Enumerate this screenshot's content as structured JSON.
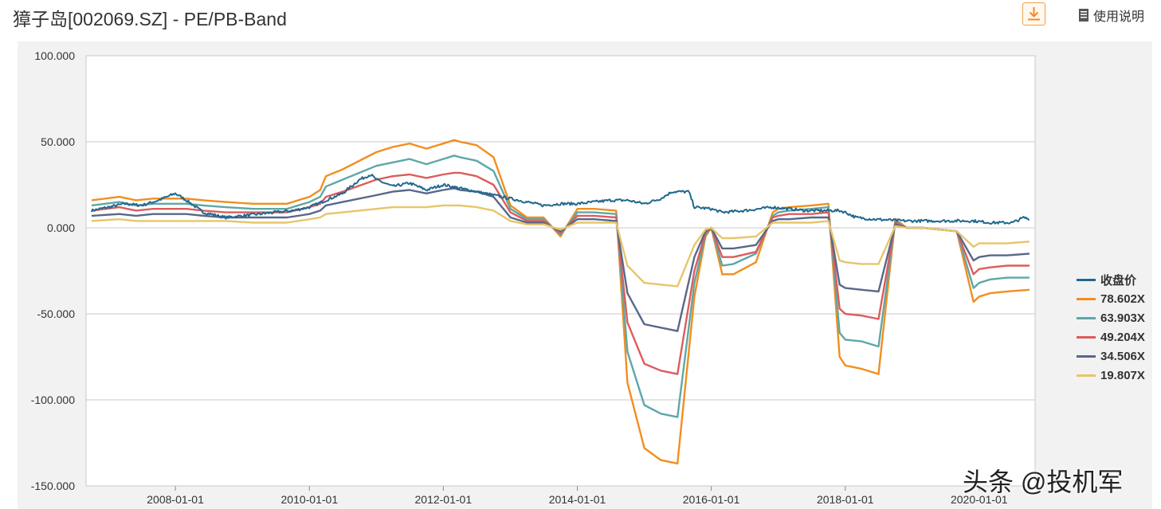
{
  "header": {
    "title": "獐子岛[002069.SZ] - PE/PB-Band",
    "help_label": "使用说明",
    "download_icon": "download-icon",
    "help_icon": "document-icon"
  },
  "watermark": "头条 @投机军",
  "chart_data": {
    "type": "line",
    "ylim": [
      -150,
      100
    ],
    "yticks": [
      "100.000",
      "50.000",
      "0.000",
      "-50.000",
      "-100.000",
      "-150.000"
    ],
    "xlim": [
      "2006-09-01",
      "2020-11-01"
    ],
    "xticks": [
      {
        "date": "2008-01-01",
        "label": "2008-01-01"
      },
      {
        "date": "2010-01-01",
        "label": "2010-01-01"
      },
      {
        "date": "2012-01-01",
        "label": "2012-01-01"
      },
      {
        "date": "2014-01-01",
        "label": "2014-01-01"
      },
      {
        "date": "2016-01-01",
        "label": "2016-01-01"
      },
      {
        "date": "2018-01-01",
        "label": "2018-01-01"
      },
      {
        "date": "2020-01-01",
        "label": "2020-01-01"
      }
    ],
    "grid": true,
    "legend_position": "right",
    "band_dates": [
      "2006-10-01",
      "2007-03-01",
      "2007-06-01",
      "2007-09-01",
      "2008-03-01",
      "2008-06-01",
      "2008-10-01",
      "2009-03-01",
      "2009-06-01",
      "2009-09-01",
      "2010-01-01",
      "2010-03-01",
      "2010-04-01",
      "2010-07-01",
      "2011-01-01",
      "2011-04-01",
      "2011-07-01",
      "2011-10-01",
      "2012-01-01",
      "2012-03-01",
      "2012-04-01",
      "2012-07-01",
      "2012-10-01",
      "2013-01-01",
      "2013-04-01",
      "2013-07-01",
      "2013-10-01",
      "2014-01-01",
      "2014-03-01",
      "2014-04-01",
      "2014-08-01",
      "2014-10-01",
      "2015-01-01",
      "2015-04-01",
      "2015-07-01",
      "2015-10-01",
      "2015-12-01",
      "2016-01-01",
      "2016-03-01",
      "2016-05-01",
      "2016-09-01",
      "2016-12-01",
      "2017-01-01",
      "2017-03-01",
      "2017-07-01",
      "2017-10-01",
      "2017-12-01",
      "2018-01-01",
      "2018-04-01",
      "2018-07-01",
      "2018-10-01",
      "2018-12-01",
      "2019-03-01",
      "2019-06-01",
      "2019-09-01",
      "2019-12-01",
      "2020-01-01",
      "2020-03-01",
      "2020-06-01",
      "2020-10-01"
    ],
    "series": [
      {
        "name": "收盘价",
        "color": "#21688e",
        "points": [
          [
            "2006-10-01",
            10
          ],
          [
            "2007-01-01",
            12
          ],
          [
            "2007-04-01",
            14
          ],
          [
            "2007-07-01",
            13
          ],
          [
            "2007-10-01",
            16
          ],
          [
            "2008-01-01",
            20
          ],
          [
            "2008-03-01",
            16
          ],
          [
            "2008-06-01",
            9
          ],
          [
            "2008-10-01",
            6
          ],
          [
            "2009-01-01",
            7
          ],
          [
            "2009-04-01",
            8
          ],
          [
            "2009-07-01",
            9
          ],
          [
            "2009-10-01",
            10
          ],
          [
            "2010-01-01",
            12
          ],
          [
            "2010-04-01",
            16
          ],
          [
            "2010-07-01",
            20
          ],
          [
            "2010-10-01",
            28
          ],
          [
            "2010-12-01",
            31
          ],
          [
            "2011-01-01",
            28
          ],
          [
            "2011-04-01",
            24
          ],
          [
            "2011-07-01",
            26
          ],
          [
            "2011-10-01",
            22
          ],
          [
            "2012-01-01",
            25
          ],
          [
            "2012-04-01",
            23
          ],
          [
            "2012-07-01",
            21
          ],
          [
            "2012-10-01",
            19
          ],
          [
            "2013-01-01",
            17
          ],
          [
            "2013-04-01",
            15
          ],
          [
            "2013-07-01",
            13
          ],
          [
            "2013-10-01",
            14
          ],
          [
            "2014-01-01",
            14
          ],
          [
            "2014-04-01",
            15
          ],
          [
            "2014-07-01",
            16
          ],
          [
            "2014-10-01",
            16
          ],
          [
            "2015-01-01",
            14
          ],
          [
            "2015-04-01",
            17
          ],
          [
            "2015-06-01",
            21
          ],
          [
            "2015-09-01",
            21
          ],
          [
            "2015-10-01",
            12
          ],
          [
            "2016-01-01",
            11
          ],
          [
            "2016-03-01",
            9
          ],
          [
            "2016-07-01",
            10
          ],
          [
            "2016-12-01",
            12
          ],
          [
            "2017-03-01",
            11
          ],
          [
            "2017-06-01",
            10
          ],
          [
            "2017-09-01",
            10
          ],
          [
            "2017-12-01",
            10
          ],
          [
            "2018-01-01",
            9
          ],
          [
            "2018-03-01",
            6
          ],
          [
            "2018-06-01",
            5
          ],
          [
            "2018-12-01",
            4
          ],
          [
            "2019-06-01",
            4
          ],
          [
            "2019-12-01",
            4
          ],
          [
            "2020-03-01",
            3
          ],
          [
            "2020-07-01",
            3
          ],
          [
            "2020-09-01",
            6
          ],
          [
            "2020-10-01",
            5
          ]
        ]
      },
      {
        "name": "78.602X",
        "color": "#f28e1e",
        "values": [
          16,
          18,
          16,
          17,
          17,
          16,
          15,
          14,
          14,
          14,
          18,
          22,
          30,
          34,
          44,
          47,
          49,
          46,
          49,
          51,
          50,
          48,
          41,
          13,
          6,
          6,
          -5,
          11,
          11,
          11,
          10,
          -90,
          -128,
          -135,
          -137,
          -40,
          -5,
          0,
          -27,
          -27,
          -20,
          9,
          11,
          12,
          13,
          14,
          -75,
          -80,
          -82,
          -85,
          5,
          0,
          0,
          -1,
          -2,
          -43,
          -40,
          -38,
          -37,
          -36
        ]
      },
      {
        "name": "63.903X",
        "color": "#5ea7a8",
        "values": [
          13,
          15,
          13,
          14,
          14,
          13,
          12,
          11,
          11,
          11,
          15,
          18,
          24,
          28,
          36,
          38,
          40,
          37,
          40,
          42,
          41,
          39,
          33,
          11,
          5,
          5,
          -4,
          9,
          9,
          9,
          8,
          -72,
          -103,
          -108,
          -110,
          -32,
          -4,
          0,
          -22,
          -21,
          -15,
          7,
          9,
          10,
          11,
          12,
          -61,
          -65,
          -66,
          -69,
          4,
          0,
          0,
          -1,
          -2,
          -35,
          -32,
          -30,
          -29,
          -29
        ]
      },
      {
        "name": "49.204X",
        "color": "#dd5c5c",
        "values": [
          10,
          12,
          10,
          11,
          11,
          10,
          9,
          9,
          9,
          9,
          12,
          14,
          18,
          21,
          28,
          30,
          31,
          29,
          31,
          32,
          32,
          30,
          25,
          9,
          4,
          4,
          -3,
          7,
          7,
          7,
          6,
          -55,
          -79,
          -83,
          -85,
          -25,
          -3,
          0,
          -17,
          -17,
          -14,
          6,
          7,
          8,
          8,
          9,
          -47,
          -50,
          -51,
          -53,
          3,
          0,
          0,
          -1,
          -2,
          -27,
          -24,
          -23,
          -22,
          -22
        ]
      },
      {
        "name": "34.506X",
        "color": "#576888",
        "values": [
          7,
          8,
          7,
          8,
          8,
          7,
          6,
          6,
          6,
          6,
          8,
          10,
          13,
          15,
          19,
          21,
          22,
          20,
          22,
          23,
          22,
          21,
          18,
          6,
          3,
          3,
          -2,
          5,
          5,
          5,
          4,
          -38,
          -56,
          -58,
          -60,
          -17,
          -2,
          0,
          -12,
          -12,
          -10,
          4,
          5,
          5,
          6,
          6,
          -33,
          -35,
          -36,
          -37,
          2,
          0,
          0,
          -1,
          -2,
          -19,
          -17,
          -16,
          -16,
          -15
        ]
      },
      {
        "name": "19.807X",
        "color": "#e7c56a",
        "values": [
          4,
          5,
          4,
          4,
          4,
          4,
          4,
          3,
          3,
          3,
          5,
          6,
          8,
          9,
          11,
          12,
          12,
          12,
          13,
          13,
          13,
          12,
          10,
          4,
          2,
          2,
          -1,
          3,
          3,
          3,
          3,
          -22,
          -32,
          -33,
          -34,
          -10,
          -1,
          0,
          -6,
          -6,
          -5,
          3,
          3,
          3,
          3,
          4,
          -19,
          -20,
          -21,
          -21,
          1,
          0,
          0,
          -1,
          -2,
          -11,
          -9,
          -9,
          -9,
          -8
        ]
      }
    ]
  }
}
